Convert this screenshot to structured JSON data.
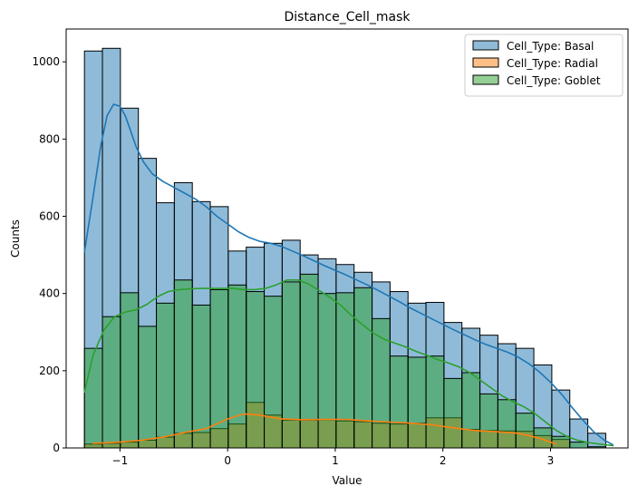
{
  "chart_data": {
    "type": "bar",
    "title": "Distance_Cell_mask",
    "xlabel": "Value",
    "ylabel": "Counts",
    "xlim": [
      -1.5,
      3.72
    ],
    "ylim": [
      0,
      1085
    ],
    "xticks": [
      -1,
      0,
      1,
      2,
      3
    ],
    "yticks": [
      0,
      200,
      400,
      600,
      800,
      1000
    ],
    "legend_position": "top-right",
    "bin_edges": [
      -1.33,
      -1.163,
      -0.996,
      -0.829,
      -0.662,
      -0.495,
      -0.328,
      -0.161,
      0.006,
      0.173,
      0.34,
      0.507,
      0.674,
      0.841,
      1.008,
      1.175,
      1.342,
      1.509,
      1.676,
      1.843,
      2.01,
      2.177,
      2.344,
      2.511,
      2.678,
      2.845,
      3.012,
      3.179,
      3.346,
      3.513
    ],
    "series": [
      {
        "name": "Cell_Type: Basal",
        "color": "#1f77b4",
        "counts": [
          1028,
          1035,
          880,
          750,
          635,
          687,
          638,
          625,
          510,
          520,
          530,
          538,
          500,
          490,
          475,
          455,
          430,
          405,
          375,
          377,
          325,
          310,
          292,
          270,
          258,
          215,
          150,
          75,
          38
        ],
        "kde_x": [
          -1.33,
          -1.25,
          -1.18,
          -1.12,
          -1.06,
          -1.0,
          -0.95,
          -0.9,
          -0.85,
          -0.78,
          -0.7,
          -0.6,
          -0.5,
          -0.4,
          -0.3,
          -0.2,
          -0.1,
          0.0,
          0.1,
          0.2,
          0.3,
          0.4,
          0.5,
          0.6,
          0.7,
          0.8,
          0.9,
          1.0,
          1.1,
          1.2,
          1.3,
          1.4,
          1.5,
          1.6,
          1.7,
          1.8,
          1.9,
          2.0,
          2.1,
          2.2,
          2.3,
          2.4,
          2.5,
          2.6,
          2.7,
          2.8,
          2.9,
          3.0,
          3.1,
          3.2,
          3.3,
          3.4,
          3.5,
          3.58
        ],
        "kde_y": [
          508,
          650,
          780,
          860,
          890,
          885,
          860,
          820,
          780,
          740,
          710,
          690,
          675,
          660,
          645,
          625,
          600,
          580,
          560,
          545,
          535,
          530,
          522,
          510,
          498,
          485,
          472,
          460,
          448,
          435,
          422,
          408,
          393,
          378,
          362,
          348,
          334,
          320,
          306,
          293,
          280,
          268,
          258,
          248,
          235,
          218,
          196,
          170,
          140,
          105,
          72,
          42,
          20,
          8
        ]
      },
      {
        "name": "Cell_Type: Radial",
        "color": "#ff7f0e",
        "counts": [
          10,
          12,
          15,
          20,
          28,
          38,
          40,
          50,
          62,
          118,
          85,
          72,
          72,
          73,
          70,
          68,
          64,
          62,
          64,
          78,
          78,
          48,
          45,
          44,
          43,
          32,
          22,
          0,
          0
        ],
        "kde_x": [
          -1.25,
          -1.0,
          -0.8,
          -0.6,
          -0.4,
          -0.2,
          0.0,
          0.15,
          0.3,
          0.5,
          0.7,
          0.9,
          1.1,
          1.3,
          1.5,
          1.7,
          1.9,
          2.1,
          2.3,
          2.5,
          2.7,
          2.9,
          3.05
        ],
        "kde_y": [
          12,
          15,
          20,
          28,
          40,
          50,
          75,
          88,
          85,
          75,
          73,
          74,
          74,
          70,
          67,
          64,
          60,
          52,
          45,
          42,
          38,
          25,
          10
        ]
      },
      {
        "name": "Cell_Type: Goblet",
        "color": "#2ca02c",
        "counts": [
          258,
          340,
          402,
          315,
          375,
          435,
          370,
          410,
          422,
          405,
          393,
          430,
          450,
          400,
          402,
          415,
          335,
          238,
          235,
          238,
          180,
          195,
          140,
          125,
          90,
          52,
          30,
          15,
          3
        ],
        "kde_x": [
          -1.33,
          -1.25,
          -1.15,
          -1.05,
          -0.95,
          -0.85,
          -0.75,
          -0.65,
          -0.55,
          -0.45,
          -0.35,
          -0.25,
          -0.15,
          -0.05,
          0.05,
          0.15,
          0.25,
          0.35,
          0.45,
          0.55,
          0.65,
          0.75,
          0.85,
          0.95,
          1.05,
          1.15,
          1.25,
          1.35,
          1.45,
          1.55,
          1.65,
          1.75,
          1.85,
          1.95,
          2.05,
          2.15,
          2.25,
          2.35,
          2.45,
          2.55,
          2.65,
          2.75,
          2.85,
          2.95,
          3.05,
          3.15,
          3.25,
          3.35,
          3.45,
          3.58
        ],
        "kde_y": [
          145,
          240,
          305,
          340,
          352,
          358,
          372,
          392,
          405,
          410,
          412,
          413,
          413,
          413,
          413,
          410,
          410,
          413,
          422,
          435,
          435,
          425,
          408,
          390,
          370,
          343,
          320,
          298,
          282,
          272,
          262,
          250,
          240,
          229,
          220,
          210,
          195,
          175,
          155,
          135,
          120,
          107,
          90,
          68,
          46,
          30,
          20,
          14,
          10,
          6
        ]
      }
    ]
  }
}
